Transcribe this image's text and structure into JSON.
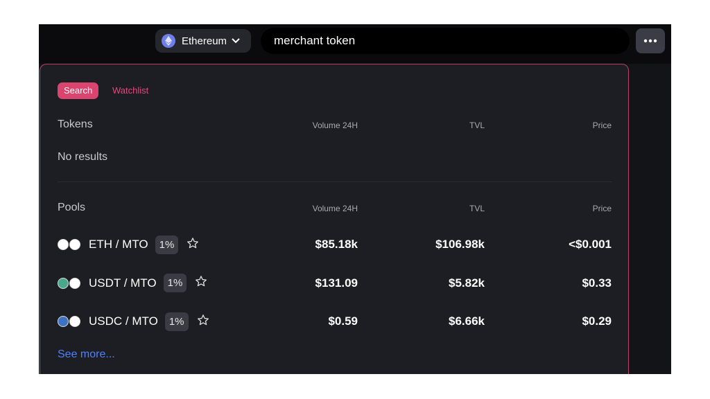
{
  "header": {
    "network": "Ethereum",
    "search_query": "merchant token"
  },
  "tabs": [
    "Search",
    "Watchlist"
  ],
  "tokens": {
    "title": "Tokens",
    "columns": [
      "Volume 24H",
      "TVL",
      "Price"
    ],
    "empty": "No results"
  },
  "pools": {
    "title": "Pools",
    "columns": [
      "Volume 24H",
      "TVL",
      "Price"
    ],
    "rows": [
      {
        "pair": "ETH / MTO",
        "fee": "1%",
        "volume": "$85.18k",
        "tvl": "$106.98k",
        "price": "<$0.001"
      },
      {
        "pair": "USDT / MTO",
        "fee": "1%",
        "volume": "$131.09",
        "tvl": "$5.82k",
        "price": "$0.33"
      },
      {
        "pair": "USDC / MTO",
        "fee": "1%",
        "volume": "$0.59",
        "tvl": "$6.66k",
        "price": "$0.29"
      }
    ]
  },
  "see_more": "See more..."
}
